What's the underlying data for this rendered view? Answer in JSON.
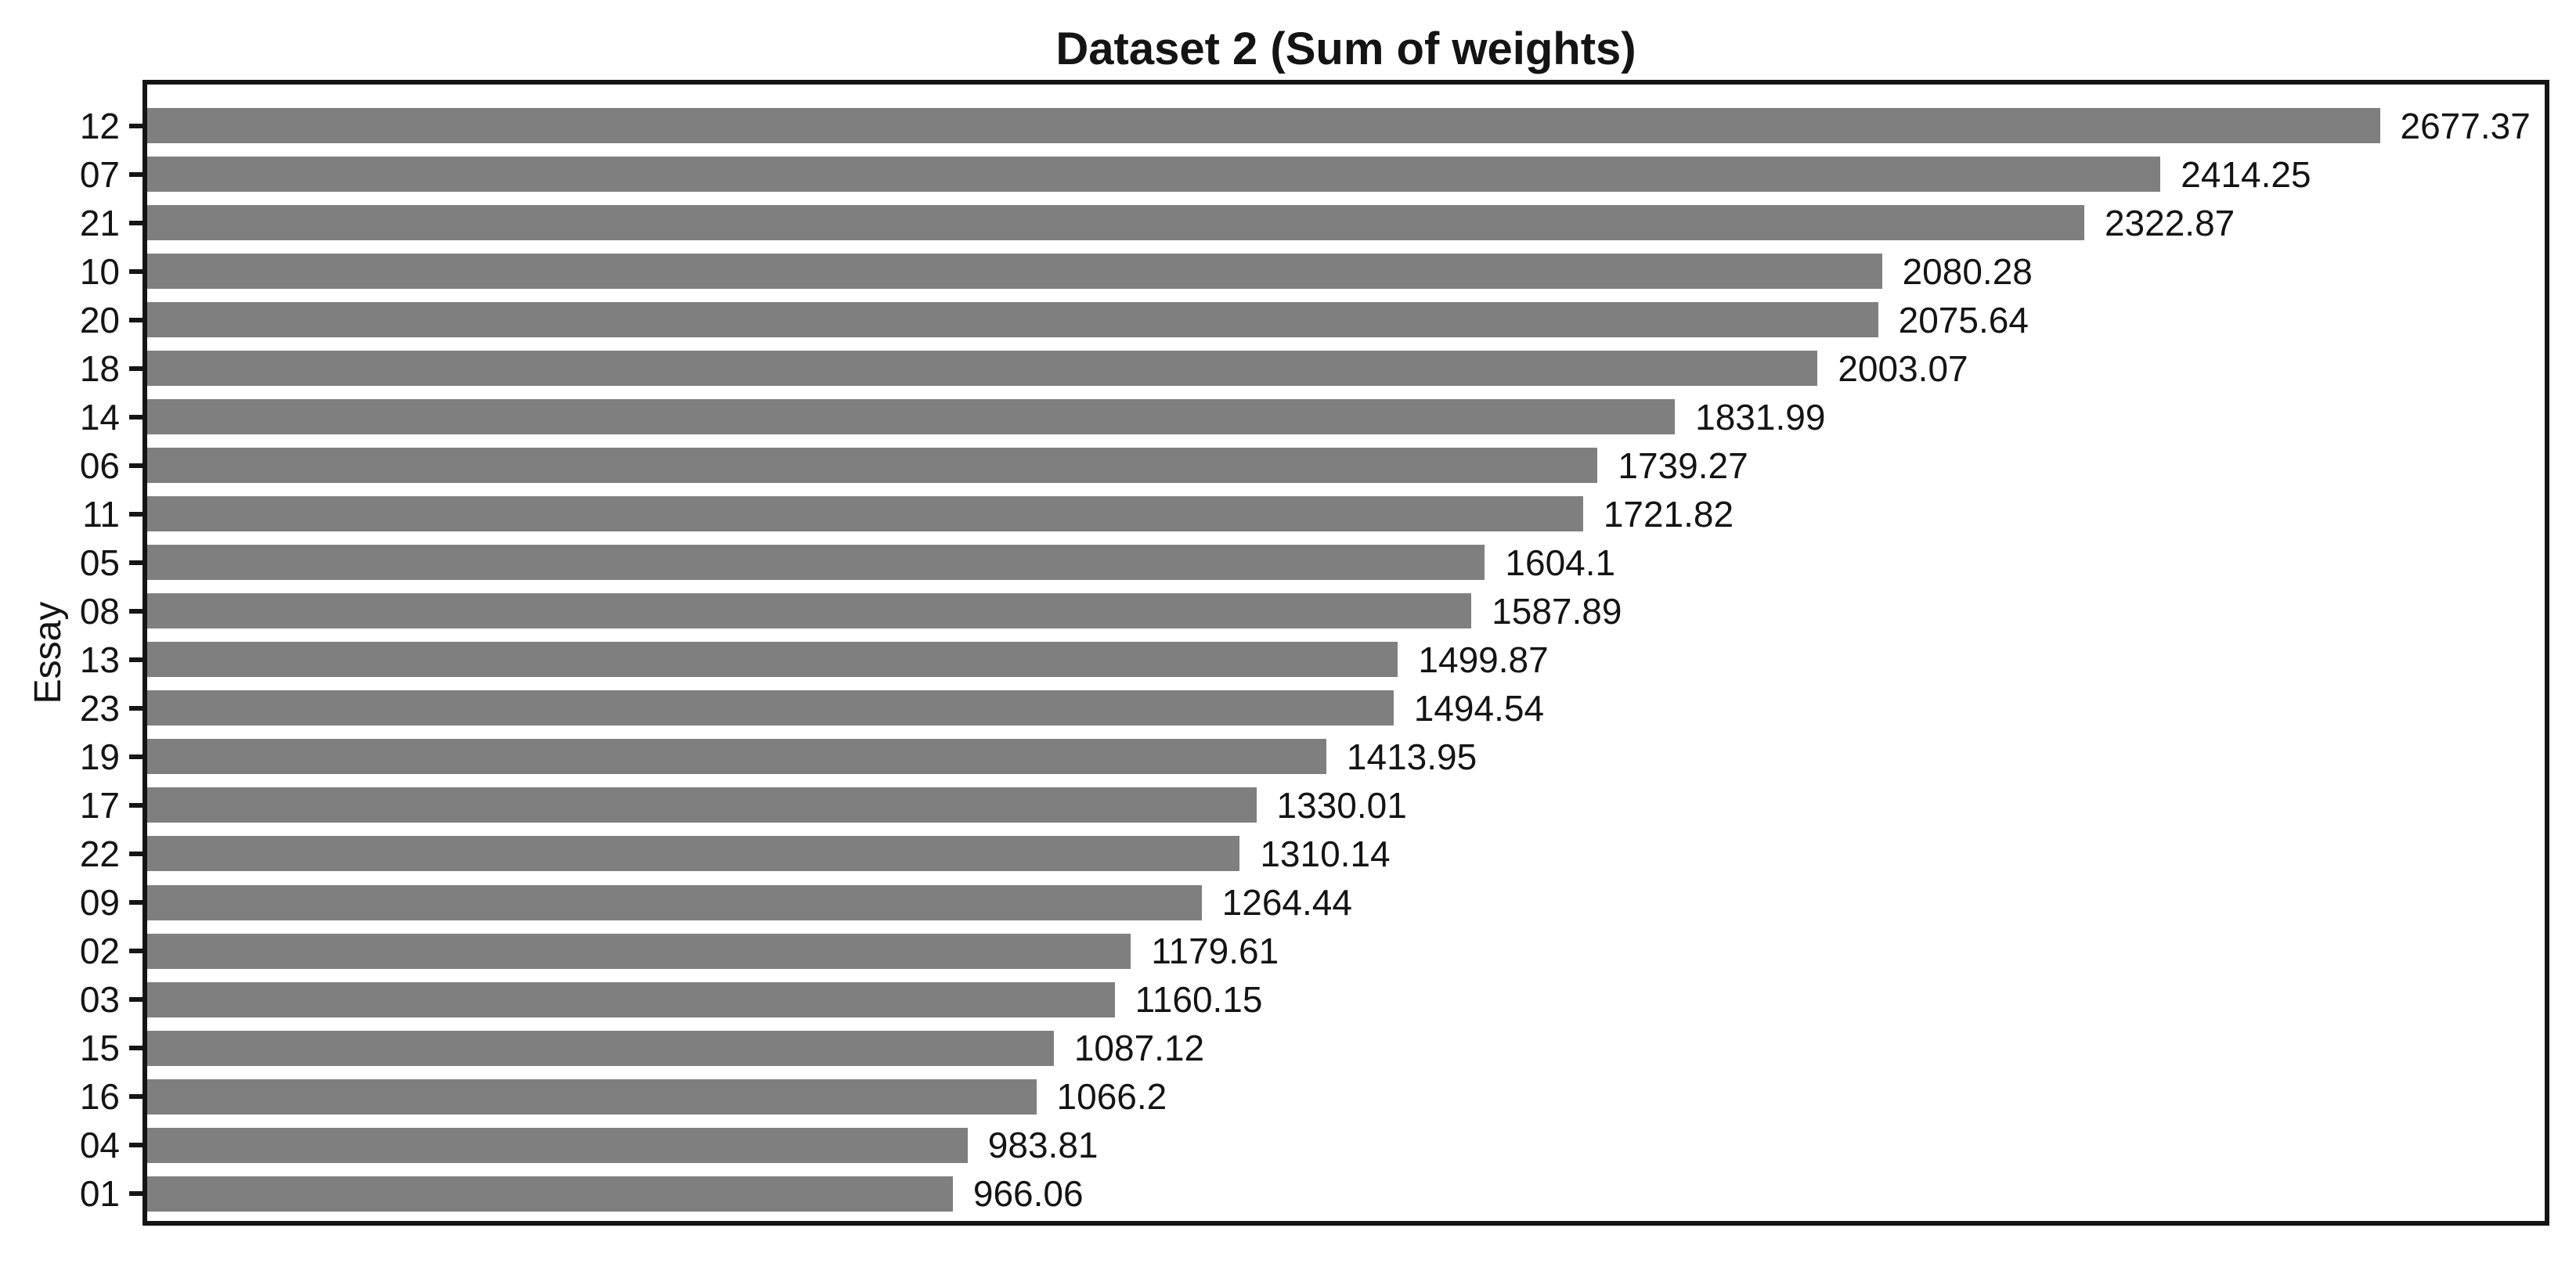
{
  "chart_data": {
    "type": "bar",
    "orientation": "horizontal",
    "title": "Dataset 2 (Sum of weights)",
    "xlabel": "",
    "ylabel": "Essay",
    "categories": [
      "12",
      "07",
      "21",
      "10",
      "20",
      "18",
      "14",
      "06",
      "11",
      "05",
      "08",
      "13",
      "23",
      "19",
      "17",
      "22",
      "09",
      "02",
      "03",
      "15",
      "16",
      "04",
      "01"
    ],
    "values": [
      2677.37,
      2414.25,
      2322.87,
      2080.28,
      2075.64,
      2003.07,
      1831.99,
      1739.27,
      1721.82,
      1604.1,
      1587.89,
      1499.87,
      1494.54,
      1413.95,
      1330.01,
      1310.14,
      1264.44,
      1179.61,
      1160.15,
      1087.12,
      1066.2,
      983.81,
      966.06
    ],
    "value_labels": [
      "2677.37",
      "2414.25",
      "2322.87",
      "2080.28",
      "2075.64",
      "2003.07",
      "1831.99",
      "1739.27",
      "1721.82",
      "1604.1",
      "1587.89",
      "1499.87",
      "1494.54",
      "1413.95",
      "1330.01",
      "1310.14",
      "1264.44",
      "1179.61",
      "1160.15",
      "1087.12",
      "1066.2",
      "983.81",
      "966.06"
    ],
    "sort_order": "descending",
    "xlim": [
      0,
      2875
    ],
    "grid": false,
    "legend": "none",
    "bar_color": "#7f7f7f",
    "axis_color": "#151515",
    "background_color": "#ffffff"
  }
}
